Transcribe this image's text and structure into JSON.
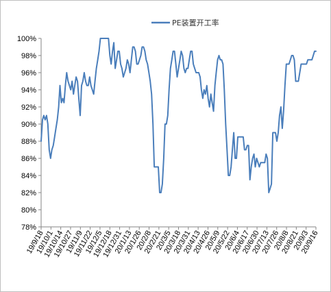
{
  "chart_data": {
    "type": "line",
    "title": "",
    "xlabel": "",
    "ylabel": "",
    "ylim": [
      78,
      100
    ],
    "yticks": [
      "78%",
      "80%",
      "82%",
      "84%",
      "86%",
      "88%",
      "90%",
      "92%",
      "94%",
      "96%",
      "98%",
      "100%"
    ],
    "xtick_labels": [
      "19/9/18",
      "19/10/1",
      "19/10/14",
      "19/10/27",
      "19/11/9",
      "19/11/22",
      "19/12/5",
      "19/12/18",
      "19/12/31",
      "20/1/13",
      "20/1/26",
      "20/2/8",
      "20/2/21",
      "20/3/5",
      "20/3/18",
      "20/3/31",
      "20/4/13",
      "20/4/26",
      "20/5/9",
      "20/5/22",
      "20/6/4",
      "20/6/17",
      "20/6/30",
      "20/7/13",
      "20/7/26",
      "20/8/8",
      "20/8/21",
      "20/9/3",
      "20/9/16"
    ],
    "grid": false,
    "legend": "top",
    "series": [
      {
        "name": "PE装置开工率",
        "color": "#4a7ebb",
        "values": [
          88,
          90.5,
          91,
          90.5,
          91,
          90,
          87,
          86,
          87,
          87.5,
          88.5,
          89.5,
          90.5,
          92,
          94.5,
          92.5,
          93,
          92.5,
          94.5,
          96,
          95,
          94.5,
          94,
          95,
          93.5,
          94.5,
          95.5,
          95,
          93,
          91,
          94.5,
          95,
          96,
          95,
          94.5,
          94.5,
          95.5,
          94.5,
          94,
          93.5,
          95,
          96.5,
          97.5,
          98.5,
          100,
          100,
          100,
          100,
          100,
          100,
          100,
          98,
          97,
          98.5,
          99.5,
          96.5,
          97.5,
          98.5,
          98.5,
          97,
          96.5,
          95.5,
          96,
          96.5,
          97.5,
          97,
          96,
          97.5,
          99,
          99,
          98.5,
          97,
          97,
          97.5,
          98,
          99,
          99,
          98.5,
          97.5,
          97,
          96,
          95,
          93.5,
          90,
          85,
          85,
          85,
          85,
          82,
          82,
          83,
          86,
          90,
          90,
          91,
          94,
          96.5,
          97.5,
          98.5,
          98.5,
          97,
          95.5,
          96.5,
          97.5,
          98.5,
          98,
          96.5,
          96,
          96.5,
          96.5,
          97.5,
          98.5,
          98.5,
          97,
          96.5,
          96,
          96,
          96,
          95.5,
          94,
          93,
          94,
          93.5,
          94.5,
          93,
          92,
          93.5,
          92.5,
          91.5,
          94.5,
          96,
          97.5,
          98,
          97.5,
          97.5,
          97,
          94,
          90,
          87,
          84,
          84,
          85,
          87,
          89,
          86,
          86,
          88.5,
          88.5,
          88.5,
          88.5,
          88.5,
          87,
          87,
          87.5,
          87.5,
          83.5,
          85,
          86,
          86.5,
          85,
          86,
          85.5,
          85,
          85.5,
          85.5,
          85.5,
          85.5,
          86.5,
          86,
          82,
          82.5,
          83,
          89,
          89,
          89,
          88,
          89,
          91,
          92,
          89.5,
          91.5,
          94.5,
          97,
          97,
          97,
          97.5,
          98,
          98,
          97.5,
          95,
          95,
          95,
          96,
          97,
          97,
          97,
          97,
          97,
          97.5,
          97.5,
          97.5,
          97.5,
          98,
          98.5,
          98.5
        ]
      }
    ]
  }
}
